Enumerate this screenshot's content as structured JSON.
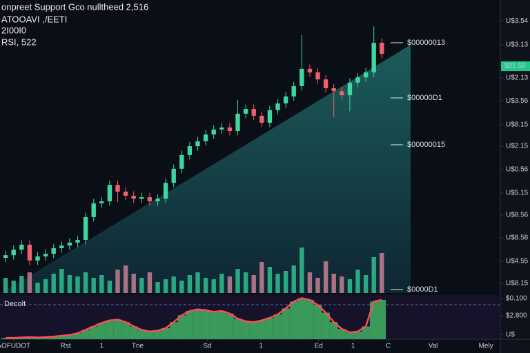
{
  "chart_data": {
    "type": "candlestick",
    "title": "onpreet Support Gco nulltheed 2,516",
    "subtitle": "ATOOAVI ,/EETI",
    "info_lines": [
      "2I00I0",
      "RSI, 522"
    ],
    "indicator_title": "Decolt",
    "colors": {
      "up": "#3fd6a0",
      "down": "#f0606a",
      "volume_up": "#2fbf8f",
      "volume_down": "#c77f93",
      "indicator": "#3a9a5a",
      "indicator_line": "#ff4d5a"
    },
    "xlim": [
      -0.7,
      61.8
    ],
    "xticks": [
      {
        "value": 1,
        "label": "AOFUDOT"
      },
      {
        "value": 7.5,
        "label": "Rst"
      },
      {
        "value": 12,
        "label": "1"
      },
      {
        "value": 16.5,
        "label": "Tne"
      },
      {
        "value": 25.2,
        "label": "Sd"
      },
      {
        "value": 31.9,
        "label": "1"
      },
      {
        "value": 39.1,
        "label": "Ed"
      },
      {
        "value": 43.4,
        "label": "1"
      },
      {
        "value": 47.8,
        "label": "C"
      },
      {
        "value": 53.4,
        "label": "Val"
      },
      {
        "value": 60,
        "label": "Mely"
      }
    ],
    "ylim": [
      0,
      100
    ],
    "yticks": [
      {
        "value": 92.9,
        "label": "U$3.54"
      },
      {
        "value": 84.7,
        "label": "U$3.13"
      },
      {
        "value": 73.4,
        "label": "U$2.13"
      },
      {
        "value": 65.6,
        "label": "U$3.56"
      },
      {
        "value": 57.4,
        "label": "U$8.15"
      },
      {
        "value": 50.1,
        "label": "U$2.15"
      },
      {
        "value": 42.1,
        "label": "U$0.56"
      },
      {
        "value": 34.1,
        "label": "U$5.15"
      },
      {
        "value": 26.6,
        "label": "U$8.56"
      },
      {
        "value": 18.8,
        "label": "U$8.58"
      },
      {
        "value": 10.8,
        "label": "U$4.55"
      },
      {
        "value": 3.3,
        "label": "U$8.15"
      }
    ],
    "grid": false,
    "last_price": {
      "value": 77.4,
      "label": "$01.50"
    },
    "levels": [
      {
        "value": 85.4,
        "label": "$00000013"
      },
      {
        "value": 66.6,
        "label": "$00000D1"
      },
      {
        "value": 50.6,
        "label": "$00000015"
      },
      {
        "value": 1.2,
        "label": "$0000D1"
      }
    ],
    "open": [
      12.0,
      12.9,
      14.8,
      16.5,
      11.1,
      12.5,
      13.4,
      15.3,
      16.2,
      17.2,
      18.1,
      25.9,
      30.6,
      31.3,
      36.9,
      34.6,
      33.2,
      32.2,
      32.7,
      31.3,
      32.2,
      37.6,
      42.4,
      47.1,
      50.1,
      51.8,
      54.1,
      55.8,
      56.5,
      55.3,
      61.2,
      62.8,
      60.5,
      58.1,
      62.4,
      64.7,
      67.1,
      70.6,
      76.5,
      75.3,
      72.9,
      69.9,
      68.9,
      67.5,
      71.8,
      73.6,
      75.3,
      85.4
    ],
    "high": [
      14.4,
      16.3,
      18.0,
      18.0,
      14.0,
      14.9,
      16.8,
      17.7,
      18.7,
      19.6,
      27.4,
      32.1,
      32.8,
      38.4,
      38.4,
      36.1,
      34.7,
      34.2,
      34.2,
      33.7,
      39.1,
      43.9,
      48.6,
      51.6,
      53.3,
      55.6,
      57.3,
      58.0,
      58.0,
      66.0,
      64.3,
      64.3,
      62.0,
      63.9,
      66.2,
      68.6,
      72.1,
      88.0,
      78.0,
      76.8,
      74.4,
      71.4,
      70.4,
      73.3,
      75.1,
      76.8,
      91.0,
      86.9
    ],
    "low": [
      10.5,
      11.4,
      13.3,
      9.6,
      9.6,
      11.0,
      11.9,
      13.8,
      14.7,
      15.7,
      16.6,
      24.4,
      29.1,
      29.8,
      31.0,
      31.7,
      30.7,
      30.7,
      29.8,
      29.8,
      30.7,
      36.1,
      40.9,
      45.6,
      48.6,
      50.3,
      52.6,
      54.3,
      53.8,
      53.8,
      59.7,
      59.0,
      56.6,
      56.6,
      60.9,
      63.2,
      65.6,
      69.1,
      73.8,
      71.4,
      68.4,
      60.0,
      66.0,
      62.0,
      70.3,
      72.1,
      73.8,
      80.1
    ],
    "close": [
      12.9,
      14.8,
      16.5,
      11.1,
      12.5,
      13.4,
      15.3,
      16.2,
      17.2,
      18.1,
      25.9,
      30.6,
      31.3,
      36.9,
      34.6,
      33.2,
      32.2,
      32.7,
      31.3,
      32.2,
      37.6,
      42.4,
      47.1,
      50.1,
      51.8,
      54.1,
      55.8,
      56.5,
      55.3,
      61.2,
      62.8,
      60.5,
      58.1,
      62.4,
      64.7,
      67.1,
      70.6,
      76.5,
      75.3,
      72.9,
      69.9,
      68.9,
      67.5,
      71.8,
      73.6,
      75.3,
      85.4,
      81.6
    ],
    "volume_lim": [
      0,
      100
    ],
    "volume": [
      22,
      18,
      25,
      30,
      15,
      20,
      28,
      35,
      26,
      24,
      30,
      22,
      26,
      18,
      34,
      40,
      28,
      22,
      30,
      16,
      20,
      24,
      18,
      26,
      30,
      22,
      20,
      28,
      24,
      35,
      30,
      26,
      45,
      38,
      28,
      32,
      40,
      66,
      30,
      22,
      46,
      28,
      24,
      20,
      34,
      26,
      52,
      58
    ],
    "indicator_lim": [
      0,
      100
    ],
    "indicator_ticks": [
      {
        "value": 95,
        "label": "$0.100"
      },
      {
        "value": 55,
        "label": "$2.800"
      },
      {
        "value": 11,
        "label": "U$"
      }
    ],
    "indicator": [
      3,
      3,
      4,
      5,
      4,
      5,
      6,
      8,
      10,
      14,
      22,
      30,
      38,
      44,
      46,
      40,
      30,
      22,
      18,
      20,
      26,
      40,
      56,
      66,
      70,
      68,
      64,
      66,
      60,
      48,
      42,
      40,
      44,
      50,
      58,
      72,
      88,
      96,
      92,
      80,
      62,
      40,
      24,
      16,
      18,
      30,
      88,
      92
    ]
  }
}
